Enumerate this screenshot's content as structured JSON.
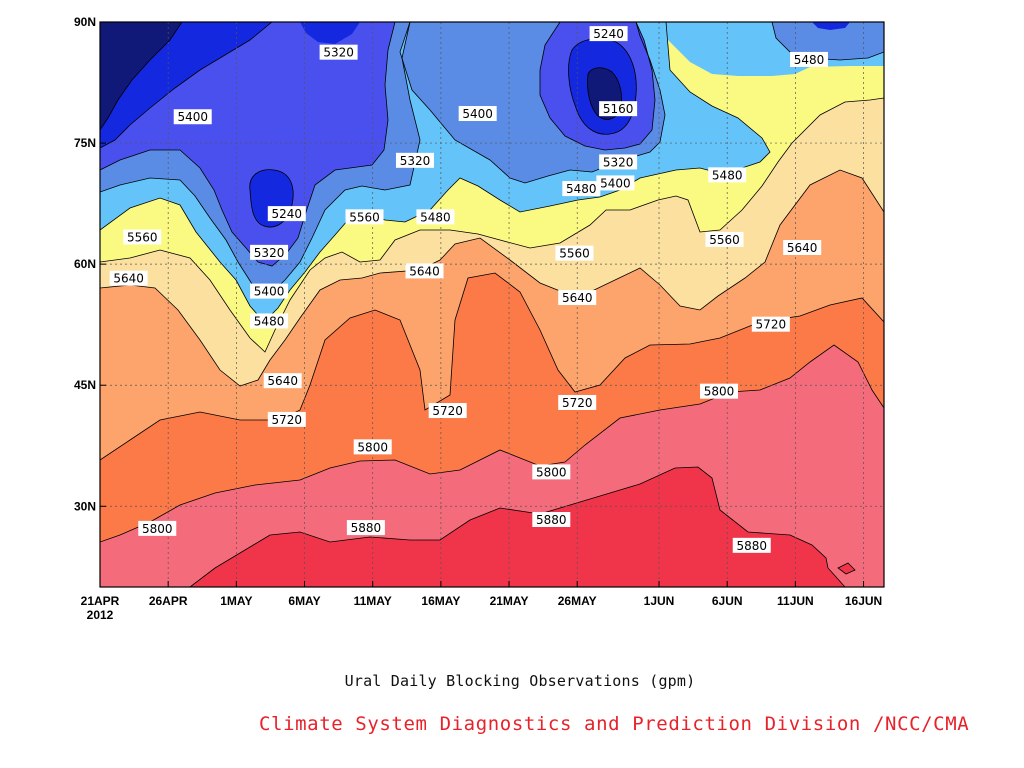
{
  "chart_data": {
    "type": "contour",
    "title": "Ural Daily Blocking Observations (gpm)",
    "credit": "Climate System Diagnostics and Prediction Division /NCC/CMA",
    "x_ticks": [
      {
        "day": 0,
        "label": "21APR",
        "sublabel": "2012"
      },
      {
        "day": 5,
        "label": "26APR"
      },
      {
        "day": 10,
        "label": "1MAY"
      },
      {
        "day": 15,
        "label": "6MAY"
      },
      {
        "day": 20,
        "label": "11MAY"
      },
      {
        "day": 25,
        "label": "16MAY"
      },
      {
        "day": 30,
        "label": "21MAY"
      },
      {
        "day": 35,
        "label": "26MAY"
      },
      {
        "day": 41,
        "label": "1JUN"
      },
      {
        "day": 46,
        "label": "6JUN"
      },
      {
        "day": 51,
        "label": "11JUN"
      },
      {
        "day": 56,
        "label": "16JUN"
      }
    ],
    "y_ticks": [
      {
        "lat": 30,
        "label": "30N"
      },
      {
        "lat": 45,
        "label": "45N"
      },
      {
        "lat": 60,
        "label": "60N"
      },
      {
        "lat": 75,
        "label": "75N"
      },
      {
        "lat": 90,
        "label": "90N"
      }
    ],
    "x_range": [
      0,
      57.5
    ],
    "y_range": [
      20,
      90
    ],
    "grid": true,
    "levels": [
      5160,
      5240,
      5320,
      5400,
      5480,
      5560,
      5640,
      5720,
      5800,
      5880
    ],
    "colors": {
      "below_5160": "#101878",
      "5160-5240": "#1428e0",
      "5240-5320": "#4a50ee",
      "5320-5400": "#5a8ce6",
      "5400-5480": "#64c4fa",
      "5480-5560": "#fafa82",
      "5560-5640": "#fce0a0",
      "5640-5720": "#fca46c",
      "5720-5800": "#fc7a48",
      "5800-5880": "#f46c7c",
      "above_5880": "#f0344a"
    },
    "contour_labels": [
      {
        "text": "5320",
        "day": 17.5,
        "lat": 86.2
      },
      {
        "text": "5400",
        "day": 6.8,
        "lat": 78.2
      },
      {
        "text": "5560",
        "day": 3.1,
        "lat": 63.3
      },
      {
        "text": "5640",
        "day": 2.1,
        "lat": 58.2
      },
      {
        "text": "5240",
        "day": 13.7,
        "lat": 66.2
      },
      {
        "text": "5320",
        "day": 12.4,
        "lat": 61.4
      },
      {
        "text": "5400",
        "day": 12.4,
        "lat": 56.6
      },
      {
        "text": "5480",
        "day": 12.4,
        "lat": 52.9
      },
      {
        "text": "5640",
        "day": 13.4,
        "lat": 45.5
      },
      {
        "text": "5720",
        "day": 13.7,
        "lat": 40.7
      },
      {
        "text": "5560",
        "day": 19.4,
        "lat": 65.8
      },
      {
        "text": "5480",
        "day": 24.6,
        "lat": 65.8
      },
      {
        "text": "5320",
        "day": 23.1,
        "lat": 72.8
      },
      {
        "text": "5400",
        "day": 27.7,
        "lat": 78.6
      },
      {
        "text": "5640",
        "day": 23.8,
        "lat": 59.1
      },
      {
        "text": "5720",
        "day": 25.5,
        "lat": 41.8
      },
      {
        "text": "5800",
        "day": 20.0,
        "lat": 37.3
      },
      {
        "text": "5880",
        "day": 19.5,
        "lat": 27.3
      },
      {
        "text": "5800",
        "day": 4.2,
        "lat": 27.2
      },
      {
        "text": "5240",
        "day": 37.3,
        "lat": 88.5
      },
      {
        "text": "5160",
        "day": 38.0,
        "lat": 79.2
      },
      {
        "text": "5320",
        "day": 38.0,
        "lat": 72.6
      },
      {
        "text": "5400",
        "day": 37.8,
        "lat": 70.0
      },
      {
        "text": "5480",
        "day": 35.3,
        "lat": 69.3
      },
      {
        "text": "5560",
        "day": 34.8,
        "lat": 61.3
      },
      {
        "text": "5640",
        "day": 35.0,
        "lat": 55.8
      },
      {
        "text": "5720",
        "day": 35.0,
        "lat": 42.8
      },
      {
        "text": "5800",
        "day": 33.1,
        "lat": 34.2
      },
      {
        "text": "5880",
        "day": 33.1,
        "lat": 28.3
      },
      {
        "text": "5480",
        "day": 52.0,
        "lat": 85.3
      },
      {
        "text": "5480",
        "day": 46.0,
        "lat": 71.0
      },
      {
        "text": "5560",
        "day": 45.8,
        "lat": 63.0
      },
      {
        "text": "5640",
        "day": 51.5,
        "lat": 62.0
      },
      {
        "text": "5720",
        "day": 49.2,
        "lat": 52.5
      },
      {
        "text": "5800",
        "day": 45.4,
        "lat": 44.2
      },
      {
        "text": "5880",
        "day": 47.8,
        "lat": 25.1
      }
    ]
  }
}
